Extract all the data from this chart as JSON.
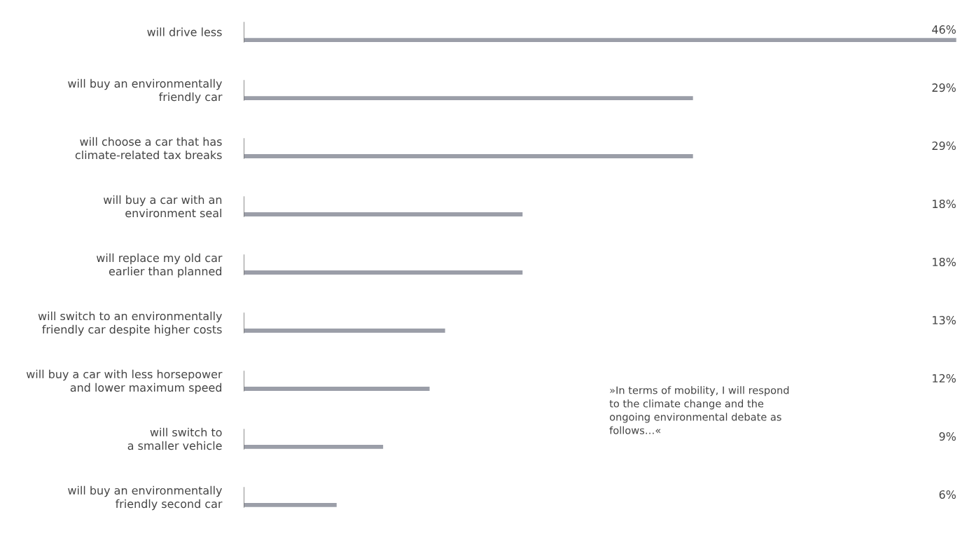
{
  "chart_data": {
    "type": "bar",
    "orientation": "horizontal",
    "categories": [
      "will drive less",
      "will buy an environmentally\nfriendly car",
      "will choose a car that has\nclimate-related tax breaks",
      "will buy a car with an\nenvironment seal",
      "will replace my old car\nearlier than planned",
      "will switch to an environmentally\nfriendly car despite higher costs",
      "will buy a car with less horsepower\nand lower maximum speed",
      "will switch to\na smaller vehicle",
      "will buy an environmentally\nfriendly second car"
    ],
    "values": [
      46,
      29,
      29,
      18,
      18,
      13,
      12,
      9,
      6
    ],
    "value_labels": [
      "46%",
      "29%",
      "29%",
      "18%",
      "18%",
      "13%",
      "12%",
      "9%",
      "6%"
    ],
    "color": "#9b9ea8",
    "annotations": [
      "»In terms of mobility, I will respond\nto the climate change and the\nongoing environmental debate as\nfollows…«"
    ]
  }
}
